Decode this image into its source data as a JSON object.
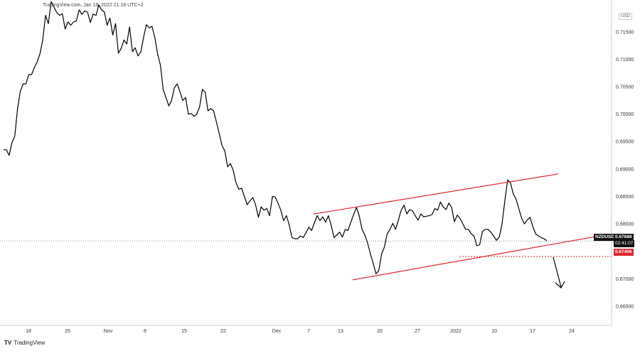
{
  "header": {
    "title": "TradingView.com, Jan 18, 2022 21:18 UTC+2"
  },
  "footer": {
    "brand": "TradingView",
    "logo_mark": "TV"
  },
  "axis": {
    "currency": "USD"
  },
  "price_labels": {
    "symbol": "NZDUSD",
    "last_price": "0.67688",
    "countdown": "02:41:07",
    "support_level": "0.67406"
  },
  "colors": {
    "line": "#000000",
    "channel": "#e0262f",
    "support": "#e0262f",
    "background": "#ffffff"
  },
  "chart_data": {
    "type": "line",
    "title": "",
    "xlabel": "",
    "ylabel": "",
    "series": [
      {
        "values": [
          0.6935,
          0.6935,
          0.6925,
          0.6948,
          0.696,
          0.701,
          0.7042,
          0.7055,
          0.7055,
          0.7072,
          0.7072,
          0.7085,
          0.7095,
          0.711,
          0.7135,
          0.718,
          0.7165,
          0.7205,
          0.7195,
          0.7185,
          0.718,
          0.7183,
          0.7155,
          0.7168,
          0.7162,
          0.7168,
          0.717,
          0.719,
          0.7182,
          0.7188,
          0.7186,
          0.7167,
          0.7182,
          0.718,
          0.7199,
          0.719,
          0.7186,
          0.7162,
          0.7175,
          0.7144,
          0.7165,
          0.7111,
          0.712,
          0.7135,
          0.7128,
          0.7159,
          0.7114,
          0.7121,
          0.7106,
          0.7113,
          0.714,
          0.7163,
          0.7157,
          0.716,
          0.714,
          0.711,
          0.709,
          0.7045,
          0.703,
          0.7015,
          0.7025,
          0.7048,
          0.7055,
          0.7041,
          0.7025,
          0.703,
          0.7,
          0.7001,
          0.6996,
          0.7,
          0.7013,
          0.7045,
          0.704,
          0.7006,
          0.701,
          0.7006,
          0.6986,
          0.6965,
          0.6943,
          0.6933,
          0.6904,
          0.691,
          0.6898,
          0.6875,
          0.6863,
          0.6865,
          0.685,
          0.6835,
          0.6842,
          0.6848,
          0.6835,
          0.6812,
          0.6831,
          0.6825,
          0.6828,
          0.6815,
          0.685,
          0.6849,
          0.6838,
          0.6825,
          0.6806,
          0.6815,
          0.6798,
          0.6775,
          0.6773,
          0.6773,
          0.6778,
          0.6775,
          0.6784,
          0.6794,
          0.6788,
          0.6802,
          0.6815,
          0.6806,
          0.6813,
          0.6803,
          0.6815,
          0.6797,
          0.6775,
          0.678,
          0.6785,
          0.6776,
          0.679,
          0.6788,
          0.6803,
          0.6817,
          0.683,
          0.6815,
          0.679,
          0.678,
          0.6765,
          0.6745,
          0.6728,
          0.6709,
          0.6715,
          0.6745,
          0.6758,
          0.6782,
          0.679,
          0.6801,
          0.679,
          0.6807,
          0.6825,
          0.6834,
          0.6818,
          0.6826,
          0.6824,
          0.6815,
          0.6807,
          0.6818,
          0.6813,
          0.6814,
          0.6815,
          0.6817,
          0.6828,
          0.6825,
          0.684,
          0.6831,
          0.6826,
          0.6838,
          0.683,
          0.6804,
          0.6816,
          0.681,
          0.68,
          0.679,
          0.679,
          0.6782,
          0.6778,
          0.676,
          0.6762,
          0.6786,
          0.679,
          0.679,
          0.6785,
          0.6778,
          0.677,
          0.6776,
          0.68,
          0.6842,
          0.688,
          0.6875,
          0.6855,
          0.6845,
          0.6828,
          0.681,
          0.68,
          0.6807,
          0.6812,
          0.6795,
          0.6782,
          0.6778,
          0.6775,
          0.6773,
          0.6769
        ],
        "color": "#000000"
      }
    ],
    "x": {
      "tick_labels": [
        "18",
        "25",
        "Nov",
        "8",
        "15",
        "22",
        "Dec",
        "7",
        "13",
        "20",
        "27",
        "2022",
        "10",
        "17",
        "24"
      ]
    },
    "y": {
      "tick_labels": [
        "0.71500",
        "0.71000",
        "0.70500",
        "0.70000",
        "0.69500",
        "0.69000",
        "0.68500",
        "0.68000",
        "0.67500",
        "0.67000",
        "0.66500"
      ],
      "ylim": [
        0.6615,
        0.7195
      ]
    },
    "annotations": {
      "channel_upper": [
        [
          0.6818,
          0.6891
        ]
      ],
      "channel_lower": [
        [
          0.6698,
          0.6777
        ]
      ],
      "support_level": 0.67406,
      "last_price": 0.67688,
      "arrow": "down"
    },
    "grid": false,
    "legend": "none"
  }
}
